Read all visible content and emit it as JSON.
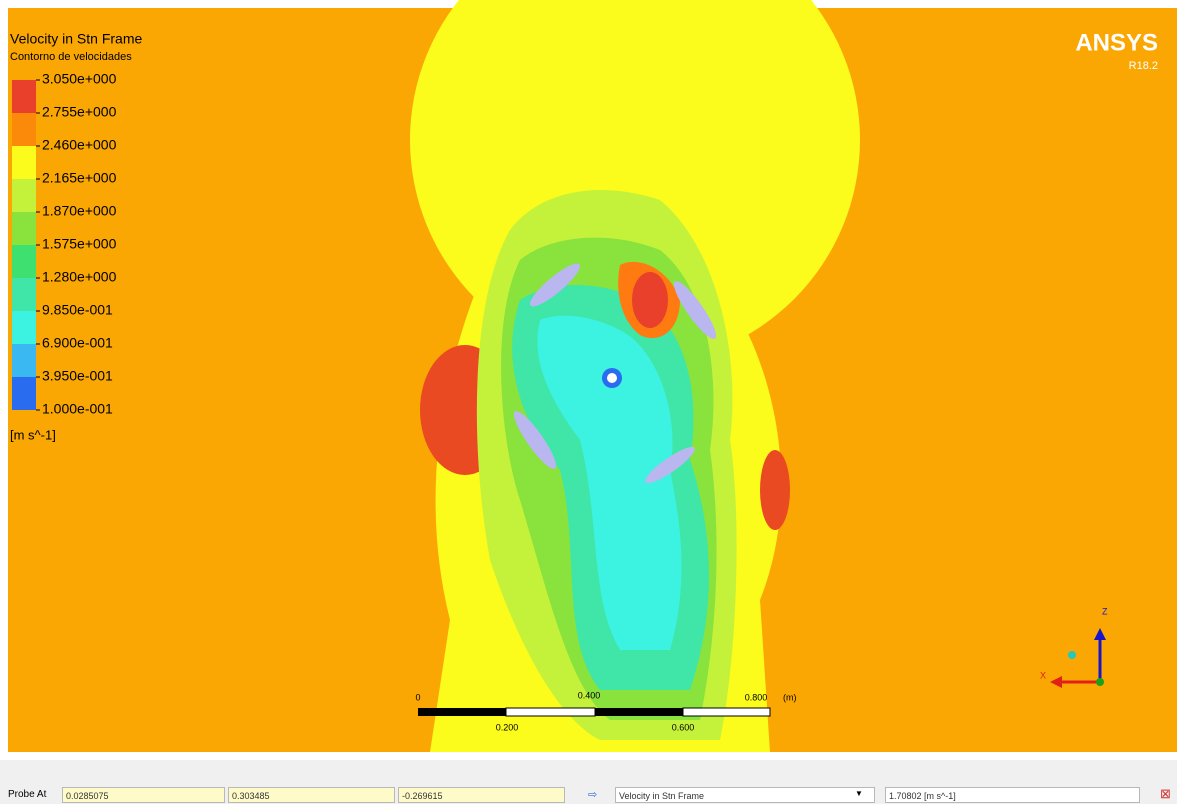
{
  "legend": {
    "title": "Velocity in Stn Frame",
    "subtitle": "Contorno de velocidades",
    "levels": [
      "3.050e+000",
      "2.755e+000",
      "2.460e+000",
      "2.165e+000",
      "1.870e+000",
      "1.575e+000",
      "1.280e+000",
      "9.850e-001",
      "6.900e-001",
      "3.950e-001",
      "1.000e-001"
    ],
    "unit": "[m s^-1]"
  },
  "logo": {
    "brand": "ANSYS",
    "version": "R18.2"
  },
  "scale_bar": {
    "labels": [
      "0",
      "0.400",
      "0.800"
    ],
    "sublabels": [
      "0.200",
      "0.600"
    ],
    "unit": "(m)"
  },
  "axes": {
    "z": "Z",
    "x": "X"
  },
  "probe": {
    "label": "Probe At",
    "x": "0.0285075",
    "y": "0.303485",
    "z": "-0.269615",
    "variable": "Velocity in Stn Frame",
    "value": "1.70802 [m s^-1]"
  }
}
